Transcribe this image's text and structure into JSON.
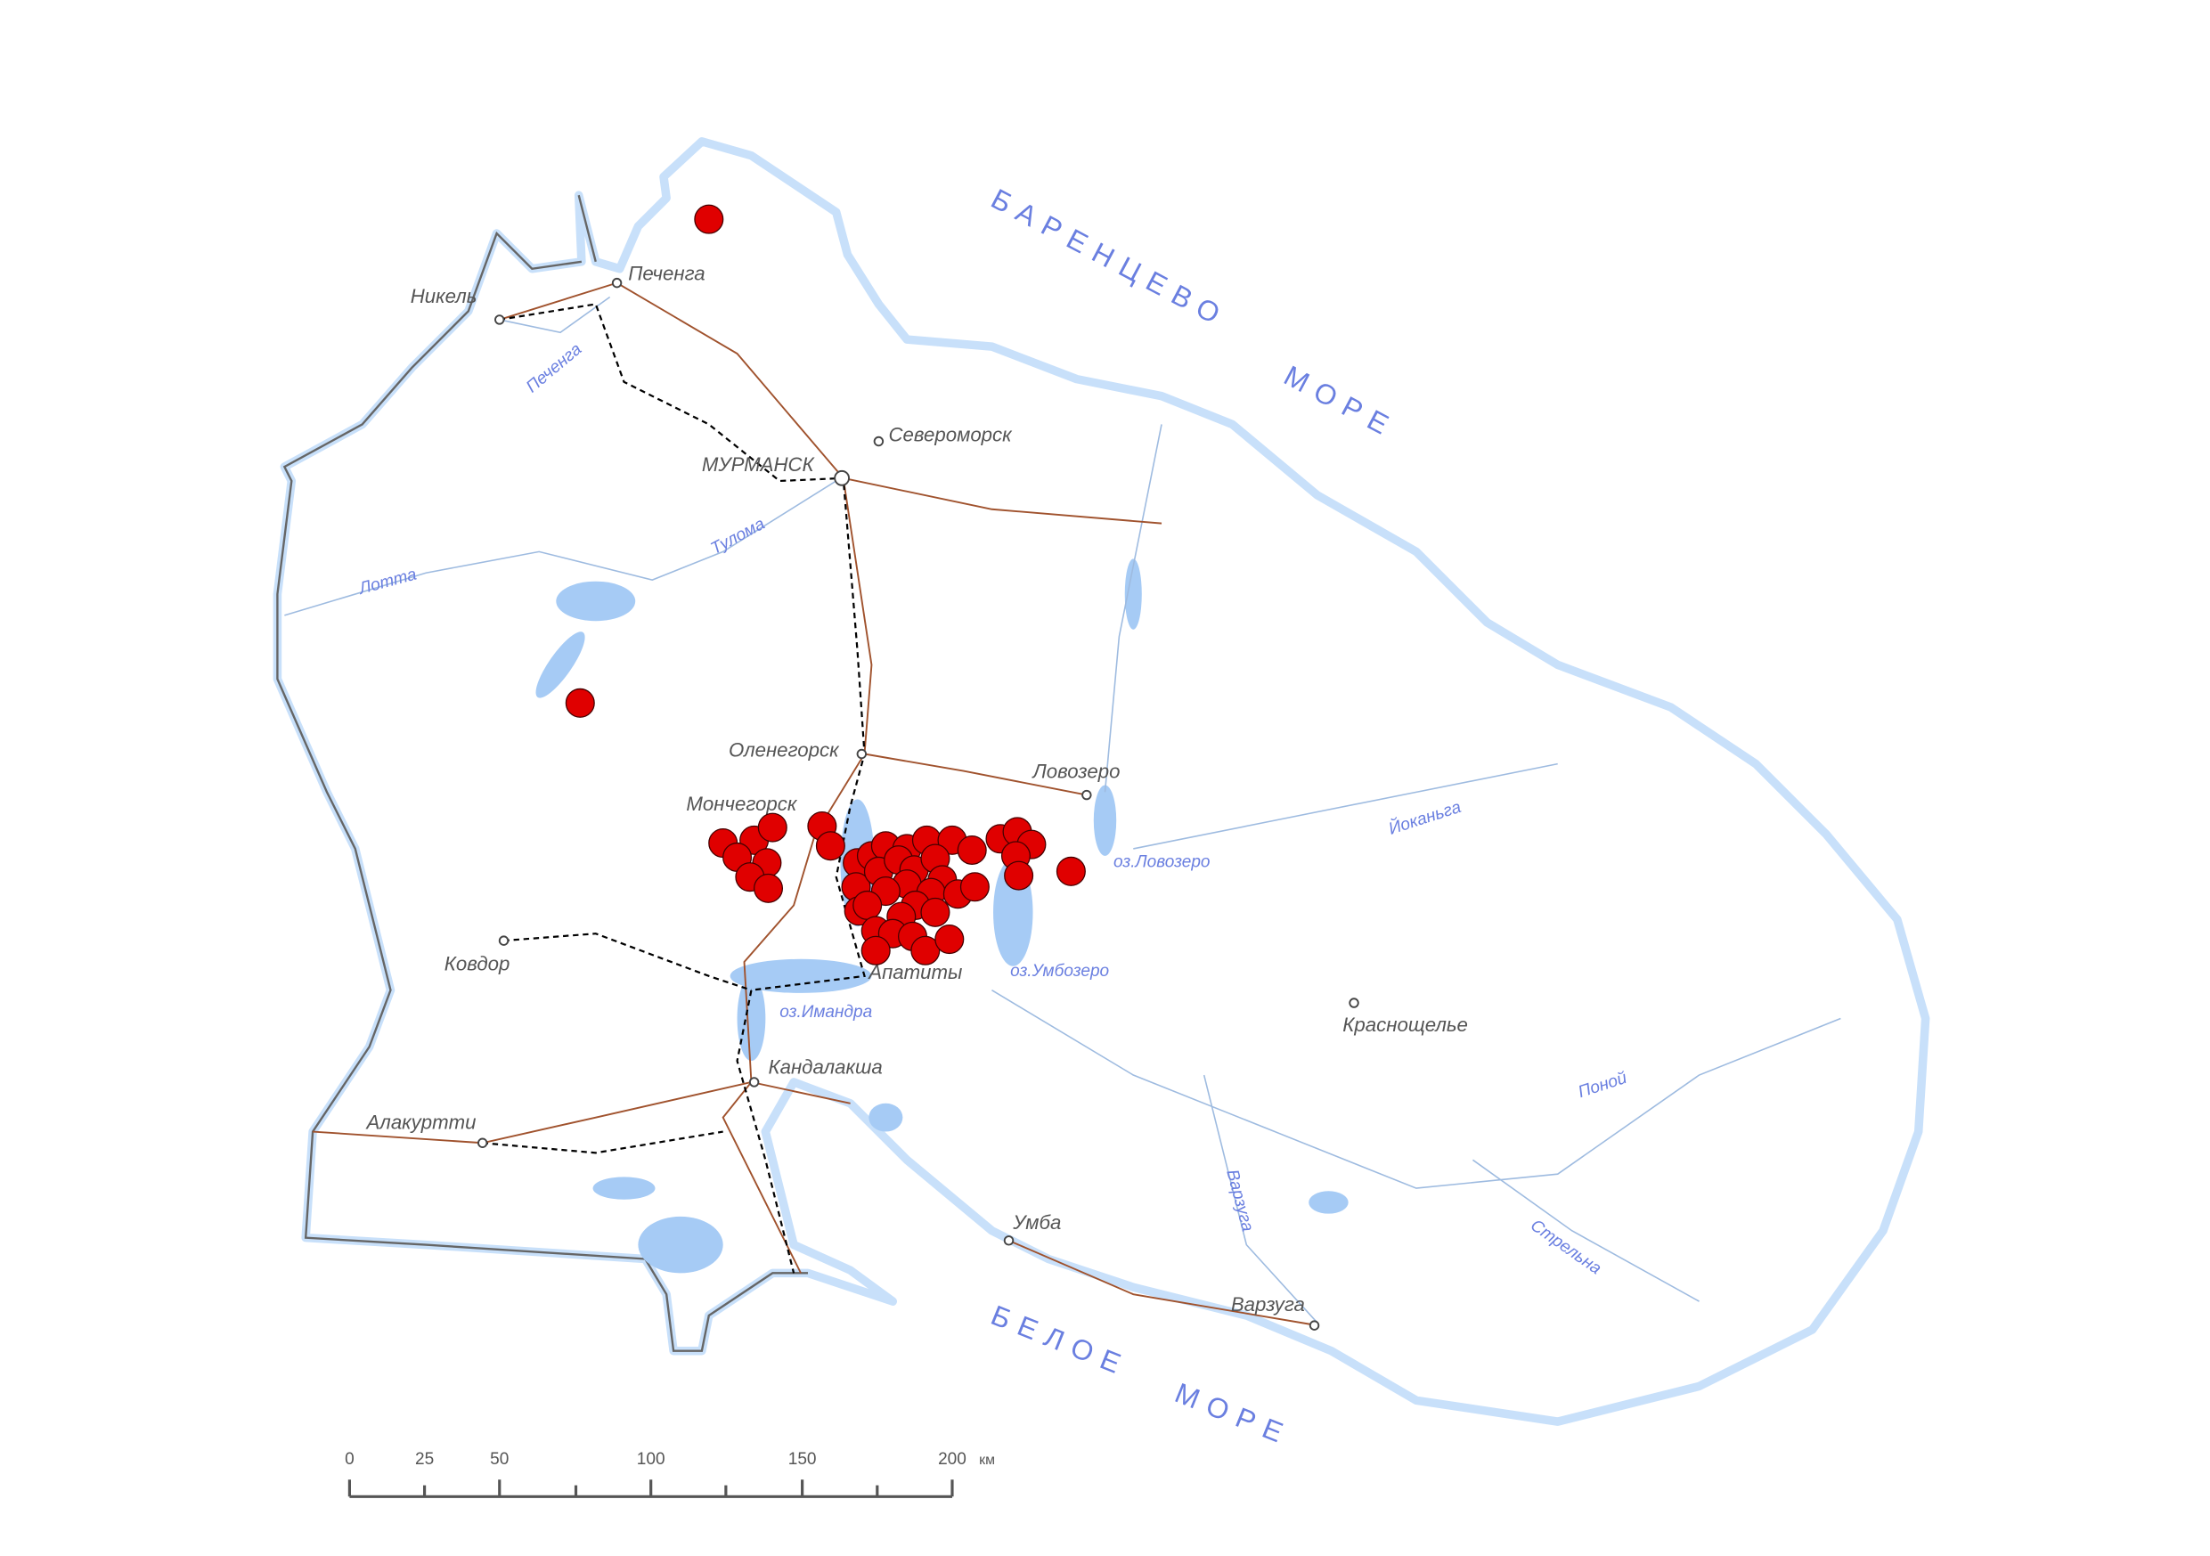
{
  "map": {
    "colors": {
      "land": "#ffffff",
      "water": "#a6cbf5",
      "coast": "#c8e0fa",
      "border": "#666666",
      "road": "#a0522d",
      "railway": "#000000",
      "marker": "#e00000",
      "river": "#9ebbe0"
    },
    "seas": {
      "barents_1": "БАРЕНЦЕВО",
      "barents_2": "МОРЕ",
      "white_1": "БЕЛОЕ",
      "white_2": "МОРЕ"
    },
    "cities": {
      "nikel": "Никель",
      "pechenga": "Печенга",
      "severomorsk": "Североморск",
      "murmansk": "МУРМАНСК",
      "olenegorsk": "Оленегорск",
      "monchegorsk": "Мончегорск",
      "lovozero": "Ловозеро",
      "apatity": "Апатиты",
      "kovdor": "Ковдор",
      "kandalaksha": "Кандалакша",
      "alakurtti": "Алакуртти",
      "krasnoshchelye": "Краснощелье",
      "umba": "Умба",
      "varzuga": "Варзуга"
    },
    "water_labels": {
      "pechenga_r": "Печенга",
      "tuloma": "Тулома",
      "lotta": "Лотта",
      "lovozero_l": "оз.Ловозеро",
      "umbozero": "оз.Умбозеро",
      "imandra": "оз.Имандра",
      "iokanga": "Йоканьга",
      "ponoy": "Поной",
      "varzuga_r": "Варзуга",
      "strelna": "Стрельна"
    },
    "marker_icon": "red-circle-marker",
    "scale_bar": {
      "ticks": [
        "0",
        "25",
        "50",
        "100",
        "150",
        "200"
      ],
      "unit": "км"
    }
  }
}
